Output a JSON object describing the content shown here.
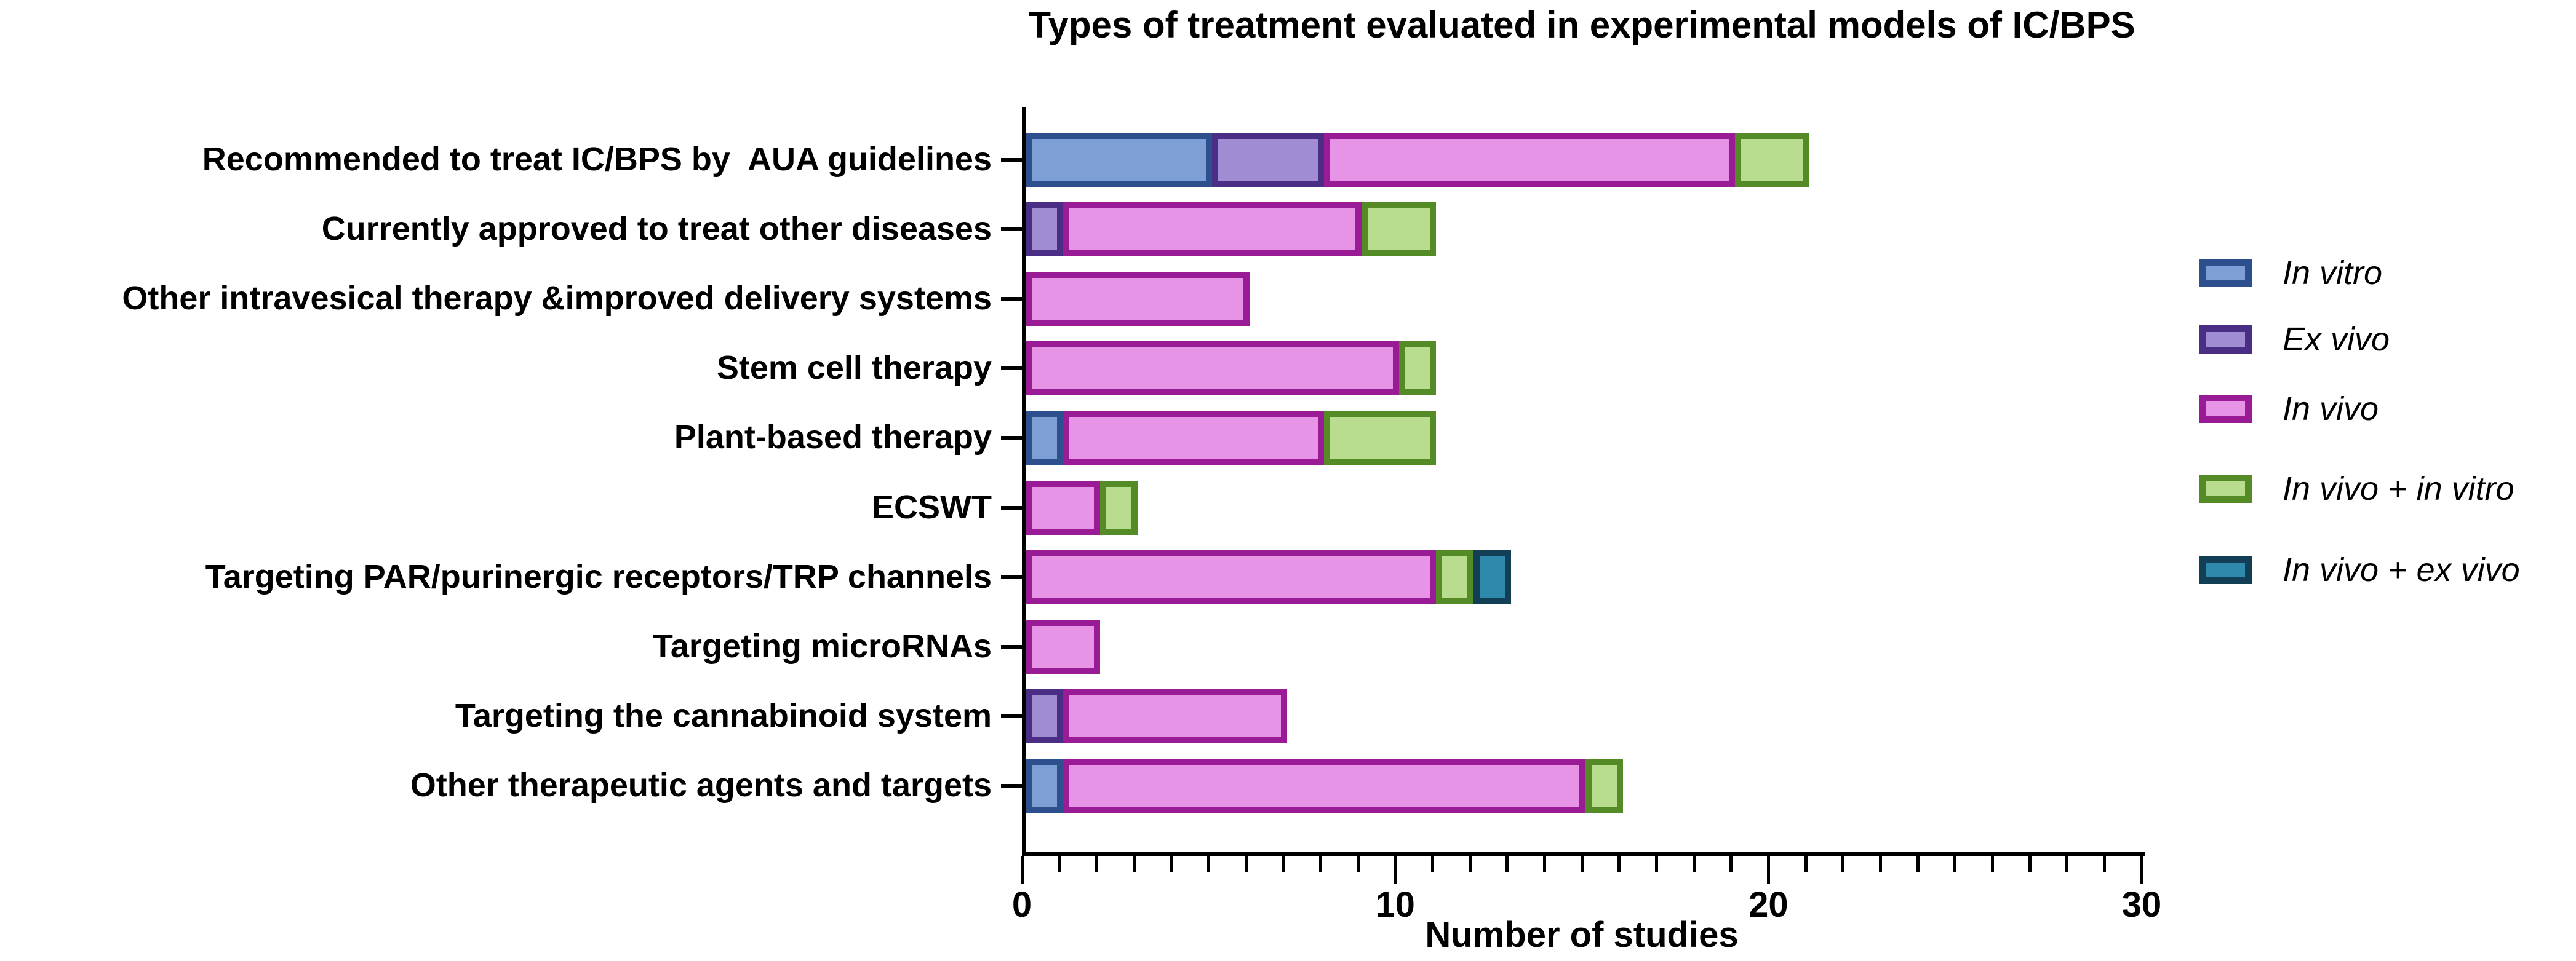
{
  "title": "Types of treatment evaluated in experimental models of IC/BPS",
  "x_axis": {
    "label": "Number of studies",
    "min": 0,
    "max": 30,
    "major_ticks": [
      0,
      10,
      20,
      30
    ],
    "minor_tick_interval": 1
  },
  "legend": [
    {
      "label": "In vitro",
      "fill": "#7d9fd6",
      "border": "#2d4f8e"
    },
    {
      "label": "Ex vivo",
      "fill": "#a08cd3",
      "border": "#4a2d85"
    },
    {
      "label": "In vivo",
      "fill": "#e794e6",
      "border": "#9a1b96"
    },
    {
      "label": "In vivo + in vitro",
      "fill": "#b8dd8e",
      "border": "#558b27"
    },
    {
      "label": "In vivo + ex vivo",
      "fill": "#2e89ad",
      "border": "#123f55"
    }
  ],
  "chart_data": {
    "type": "bar",
    "orientation": "horizontal",
    "stacked": true,
    "title": "Types of treatment evaluated in experimental models of IC/BPS",
    "xlabel": "Number of studies",
    "xlim": [
      0,
      30
    ],
    "grid": false,
    "legend_position": "right",
    "categories": [
      "Recommended to treat IC/BPS by  AUA guidelines",
      "Currently approved to treat other diseases",
      "Other intravesical therapy &improved delivery systems",
      "Stem cell therapy",
      "Plant-based therapy",
      "ECSWT",
      "Targeting PAR/purinergic receptors/TRP channels",
      "Targeting microRNAs",
      "Targeting the cannabinoid system",
      "Other therapeutic agents and targets"
    ],
    "series": [
      {
        "name": "In vitro",
        "values": [
          5,
          0,
          0,
          0,
          1,
          0,
          0,
          0,
          0,
          1
        ]
      },
      {
        "name": "Ex vivo",
        "values": [
          3,
          1,
          0,
          0,
          0,
          0,
          0,
          0,
          1,
          0
        ]
      },
      {
        "name": "In vivo",
        "values": [
          11,
          8,
          6,
          10,
          7,
          2,
          11,
          2,
          6,
          14
        ]
      },
      {
        "name": "In vivo + in vitro",
        "values": [
          2,
          2,
          0,
          1,
          3,
          1,
          1,
          0,
          0,
          1
        ]
      },
      {
        "name": "In vivo + ex vivo",
        "values": [
          0,
          0,
          0,
          0,
          0,
          0,
          1,
          0,
          0,
          0
        ]
      }
    ],
    "totals": [
      21,
      11,
      6,
      11,
      11,
      3,
      13,
      2,
      7,
      16
    ]
  }
}
